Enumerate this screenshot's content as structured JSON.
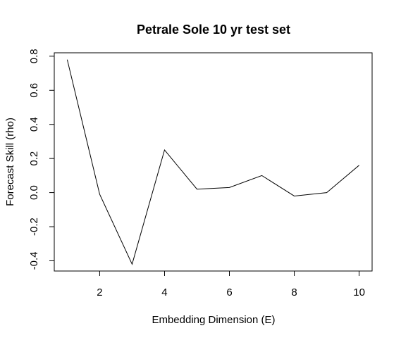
{
  "chart_data": {
    "type": "line",
    "title": "Petrale Sole 10 yr test set",
    "xlabel": "Embedding Dimension (E)",
    "ylabel": "Forecast Skill (rho)",
    "x": [
      1,
      2,
      3,
      4,
      5,
      6,
      7,
      8,
      9,
      10
    ],
    "series": [
      {
        "values": [
          0.78,
          -0.01,
          -0.42,
          0.25,
          0.02,
          0.03,
          0.1,
          -0.02,
          0.0,
          0.16
        ]
      }
    ],
    "xlim": [
      0.6,
      10.4
    ],
    "ylim": [
      -0.46,
      0.82
    ],
    "xticks": [
      2,
      4,
      6,
      8,
      10
    ],
    "xtick_labels": [
      "2",
      "4",
      "6",
      "8",
      "10"
    ],
    "yticks": [
      -0.4,
      -0.2,
      0.0,
      0.2,
      0.4,
      0.6,
      0.8
    ],
    "ytick_labels": [
      "-0.4",
      "-0.2",
      "0.0",
      "0.2",
      "0.4",
      "0.6",
      "0.8"
    ],
    "grid": false,
    "line_color": "#000000"
  }
}
